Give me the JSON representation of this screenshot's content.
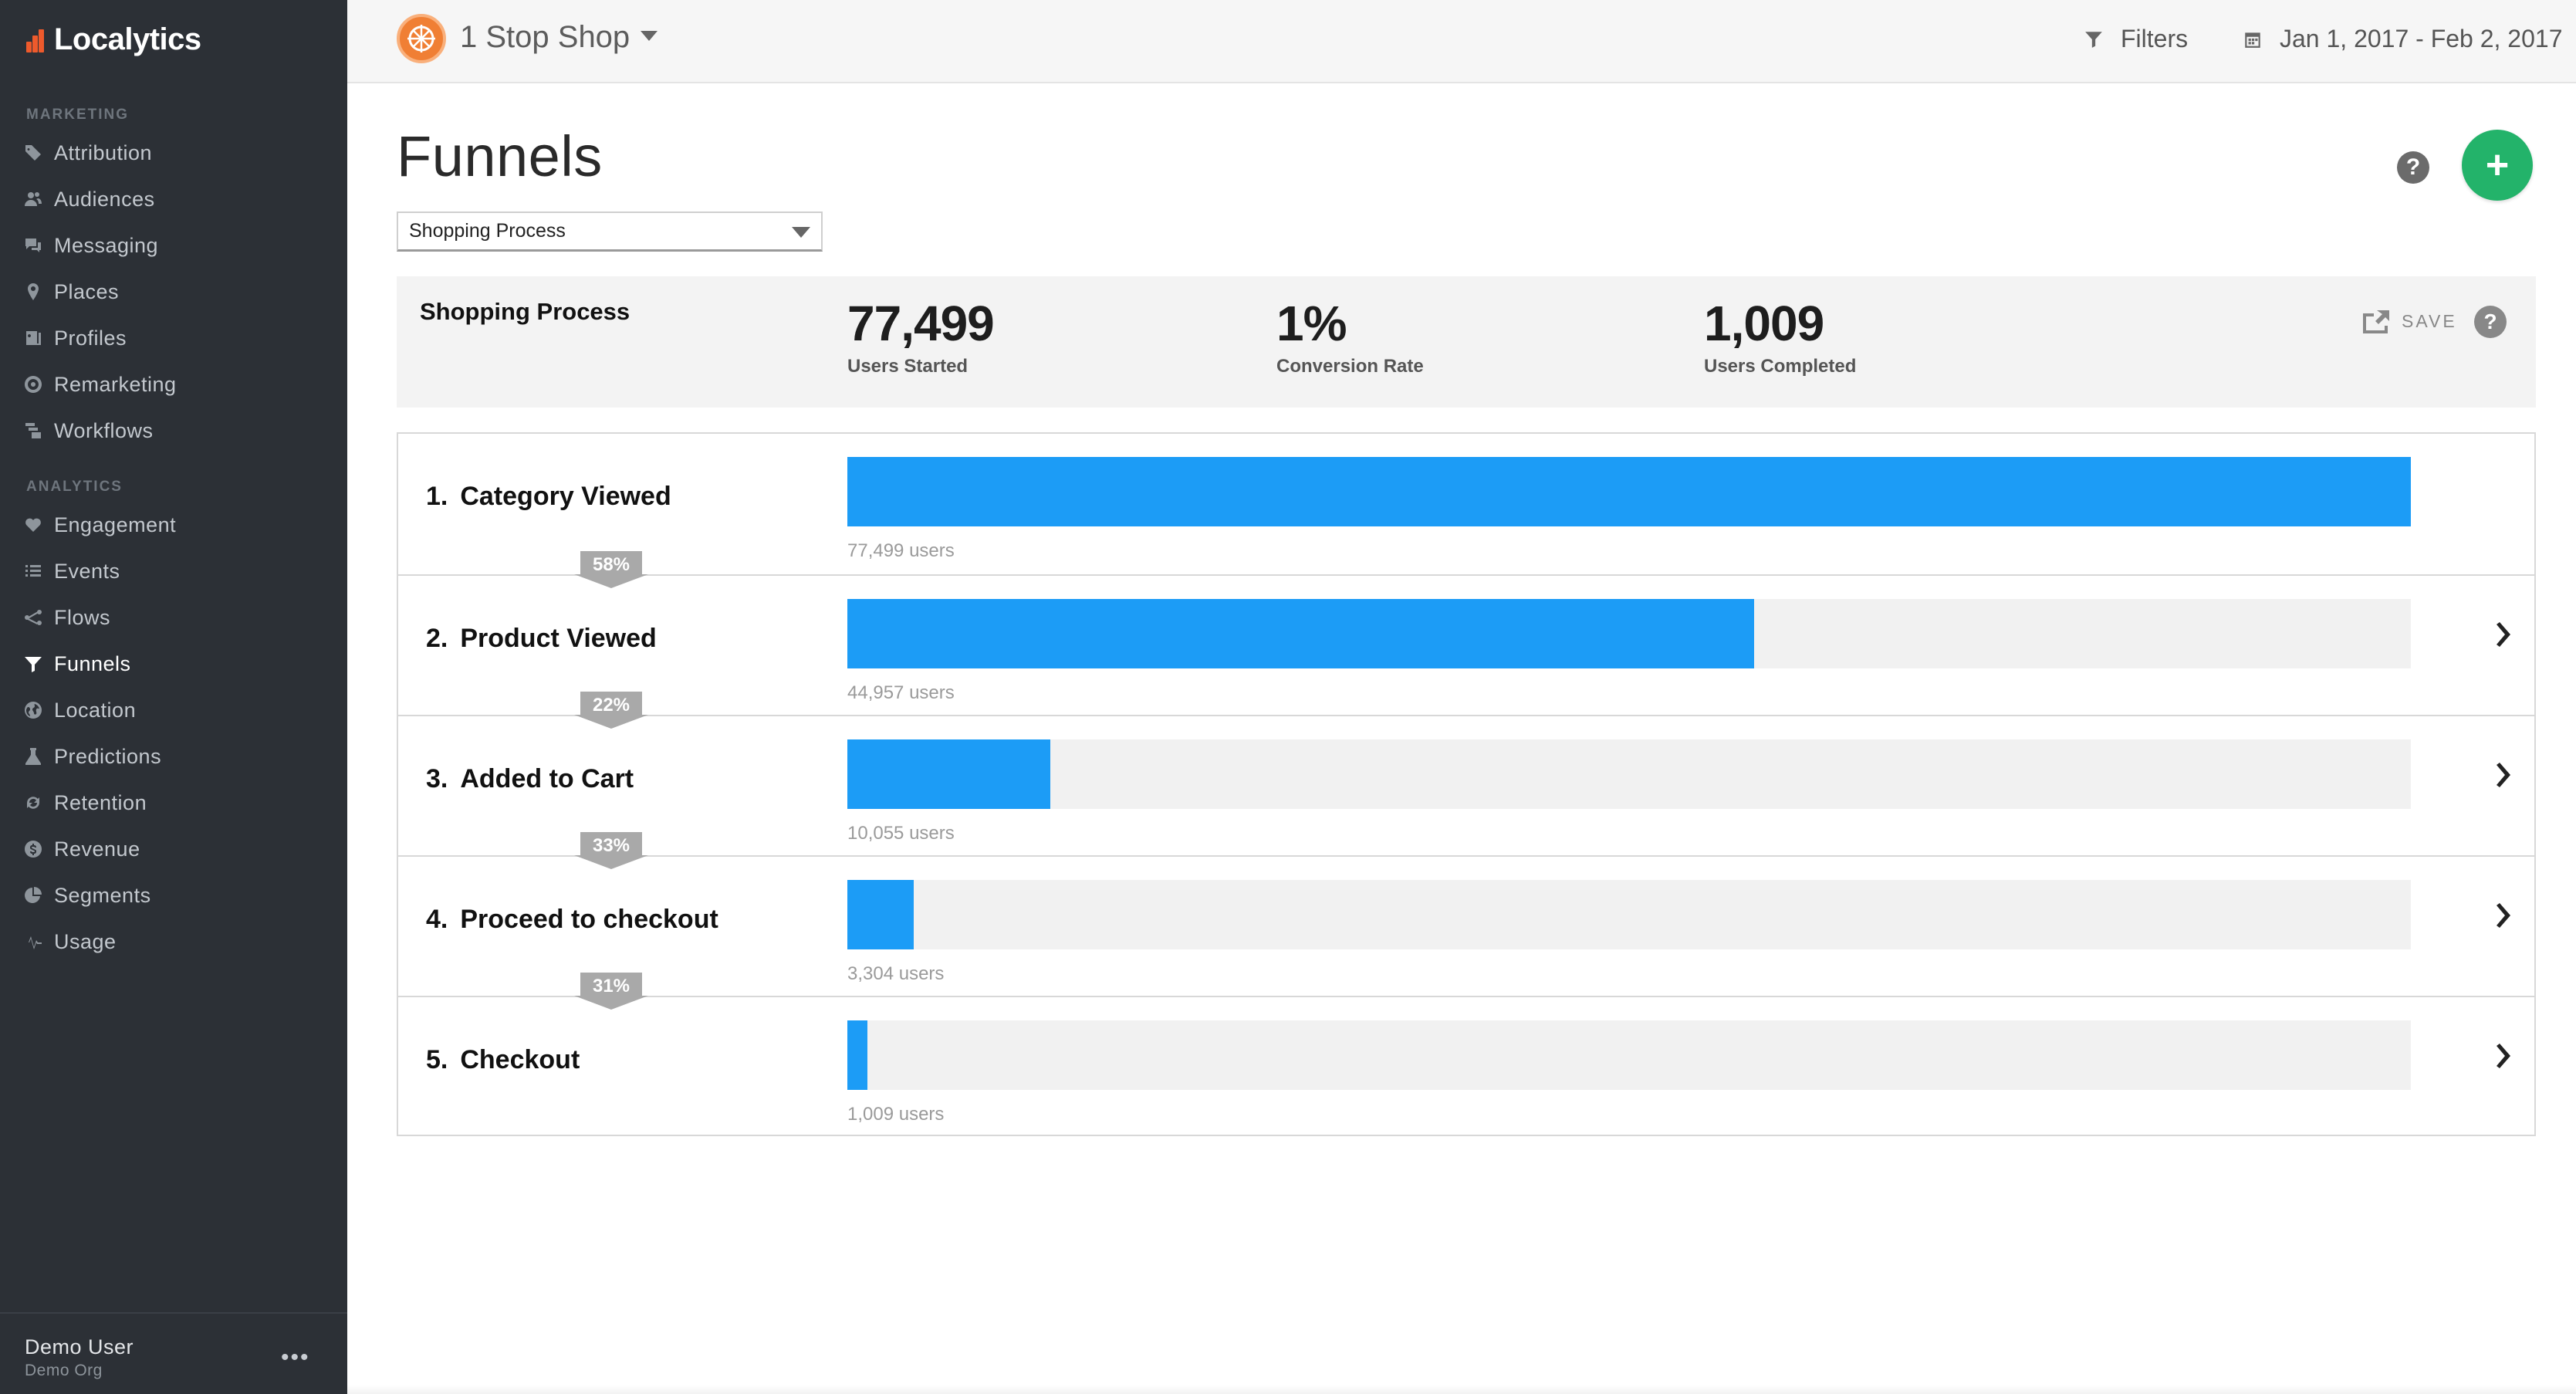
{
  "sidebar": {
    "logo": "Localytics",
    "sections": [
      {
        "label": "MARKETING",
        "items": [
          {
            "label": "Attribution",
            "icon": "tag-icon"
          },
          {
            "label": "Audiences",
            "icon": "audiences-icon"
          },
          {
            "label": "Messaging",
            "icon": "messaging-icon"
          },
          {
            "label": "Places",
            "icon": "map-pin-icon"
          },
          {
            "label": "Profiles",
            "icon": "profiles-icon"
          },
          {
            "label": "Remarketing",
            "icon": "target-icon"
          },
          {
            "label": "Workflows",
            "icon": "workflows-icon"
          }
        ]
      },
      {
        "label": "ANALYTICS",
        "items": [
          {
            "label": "Engagement",
            "icon": "heart-icon"
          },
          {
            "label": "Events",
            "icon": "list-icon"
          },
          {
            "label": "Flows",
            "icon": "flows-icon"
          },
          {
            "label": "Funnels",
            "icon": "funnel-icon",
            "active": true
          },
          {
            "label": "Location",
            "icon": "globe-icon"
          },
          {
            "label": "Predictions",
            "icon": "flask-icon"
          },
          {
            "label": "Retention",
            "icon": "retention-icon"
          },
          {
            "label": "Revenue",
            "icon": "dollar-icon"
          },
          {
            "label": "Segments",
            "icon": "pie-icon"
          },
          {
            "label": "Usage",
            "icon": "pulse-icon"
          }
        ]
      }
    ],
    "user": {
      "name": "Demo User",
      "org": "Demo Org",
      "more": "•••"
    }
  },
  "topbar": {
    "app_name": "1 Stop Shop",
    "filters_label": "Filters",
    "date_range": "Jan 1, 2017 - Feb 2, 2017"
  },
  "page": {
    "title": "Funnels",
    "help": "?",
    "add": "+",
    "selected_funnel": "Shopping Process"
  },
  "summary": {
    "name": "Shopping Process",
    "stats": [
      {
        "value": "77,499",
        "label": "Users Started"
      },
      {
        "value": "1%",
        "label": "Conversion Rate"
      },
      {
        "value": "1,009",
        "label": "Users Completed"
      }
    ],
    "save_label": "SAVE"
  },
  "colors": {
    "sidebar_bg": "#2c3036",
    "bar": "#1c9cf6",
    "add_button": "#23b36a",
    "app_icon": "#f07f34"
  },
  "funnel": {
    "steps": [
      {
        "num": "1.",
        "name": "Category Viewed",
        "users": 77499,
        "users_label": "77,499 users"
      },
      {
        "num": "2.",
        "name": "Product Viewed",
        "users": 44957,
        "users_label": "44,957 users"
      },
      {
        "num": "3.",
        "name": "Added to Cart",
        "users": 10055,
        "users_label": "10,055 users"
      },
      {
        "num": "4.",
        "name": "Proceed to checkout",
        "users": 3304,
        "users_label": "3,304 users"
      },
      {
        "num": "5.",
        "name": "Checkout",
        "users": 1009,
        "users_label": "1,009 users"
      }
    ],
    "conversions": [
      "58%",
      "22%",
      "33%",
      "31%"
    ]
  }
}
